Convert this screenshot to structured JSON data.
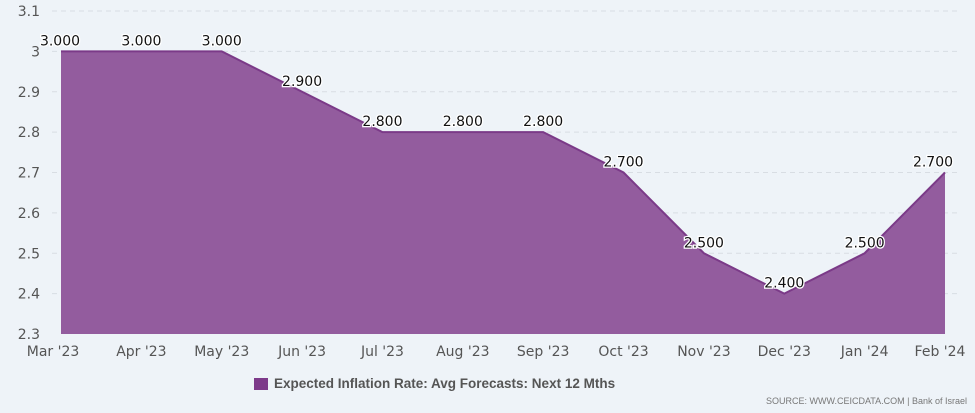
{
  "chart_data": {
    "type": "area",
    "categories": [
      "Mar '23",
      "Apr '23",
      "May '23",
      "Jun '23",
      "Jul '23",
      "Aug '23",
      "Sep '23",
      "Oct '23",
      "Nov '23",
      "Dec '23",
      "Jan '24",
      "Feb '24"
    ],
    "series": [
      {
        "name": "Expected Inflation Rate: Avg Forecasts: Next 12 Mths",
        "values": [
          3.0,
          3.0,
          3.0,
          2.9,
          2.8,
          2.8,
          2.8,
          2.7,
          2.5,
          2.4,
          2.5,
          2.7
        ]
      }
    ],
    "data_labels": [
      "3.000",
      "3.000",
      "3.000",
      "2.900",
      "2.800",
      "2.800",
      "2.800",
      "2.700",
      "2.500",
      "2.400",
      "2.500",
      "2.700"
    ],
    "yticks": [
      "2.3",
      "2.4",
      "2.5",
      "2.6",
      "2.7",
      "2.8",
      "2.9",
      "3",
      "3.1"
    ],
    "ylim": [
      2.3,
      3.1
    ],
    "grid": true,
    "legend_position": "bottom",
    "colors": {
      "fill": "#935c9e",
      "line": "#7b3a88",
      "swatch": "#7d3a8a",
      "background": "#eef3f8"
    }
  },
  "legend": {
    "label": "Expected Inflation Rate: Avg Forecasts: Next 12 Mths"
  },
  "source": "SOURCE: WWW.CEICDATA.COM | Bank of Israel"
}
